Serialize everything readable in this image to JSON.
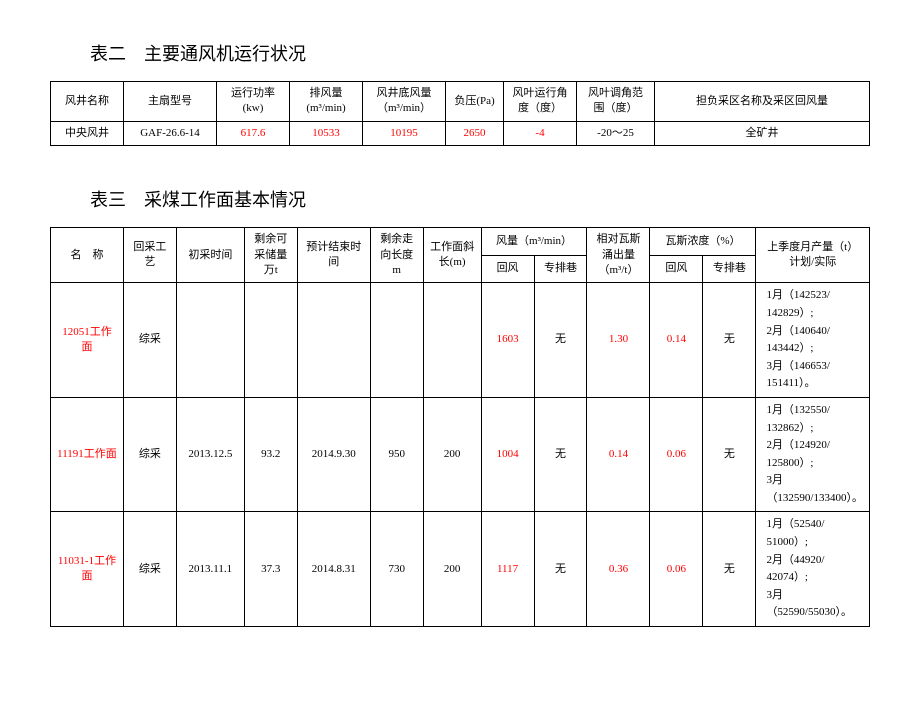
{
  "table2": {
    "title": "表二　主要通风机运行状况",
    "headers": {
      "c1": "风井名称",
      "c2": "主扇型号",
      "c3": "运行功率(kw)",
      "c4": "排风量(m³/min)",
      "c5": "风井底风量（m³/min）",
      "c6": "负压(Pa)",
      "c7": "风叶运行角度（度）",
      "c8": "风叶调角范围（度）",
      "c9": "担负采区名称及采区回风量"
    },
    "row": {
      "c1": "中央风井",
      "c2": "GAF-26.6-14",
      "c3": "617.6",
      "c4": "10533",
      "c5": "10195",
      "c6": "2650",
      "c7": "-4",
      "c8": "-20～25",
      "c9": "全矿井"
    }
  },
  "table3": {
    "title": "表三　采煤工作面基本情况",
    "headers": {
      "name": "名　称",
      "tech": "回采工艺",
      "start": "初采时间",
      "reserve": "剩余可采储量万t",
      "end": "预计结束时间",
      "length": "剩余走向长度m",
      "slope": "工作面斜长(m)",
      "airflow": "风量（m³/min）",
      "airflow_a": "回风",
      "airflow_b": "专排巷",
      "gas_rel": "相对瓦斯涌出量（m³/t）",
      "gas_conc": "瓦斯浓度（%）",
      "gas_a": "回风",
      "gas_b": "专排巷",
      "output": "上季度月产量（t）计划/实际"
    },
    "rows": [
      {
        "name": "12051工作面",
        "tech": "综采",
        "start": "",
        "reserve": "",
        "end": "",
        "length": "",
        "slope": "",
        "airflow_a": "1603",
        "airflow_b": "无",
        "gas_rel": "1.30",
        "gas_a": "0.14",
        "gas_b": "无",
        "output": "1月（142523/ 142829）;\n2月（140640/ 143442）;\n3月（146653/ 151411）。"
      },
      {
        "name": "11191工作面",
        "tech": "综采",
        "start": "2013.12.5",
        "reserve": "93.2",
        "end": "2014.9.30",
        "length": "950",
        "slope": "200",
        "airflow_a": "1004",
        "airflow_b": "无",
        "gas_rel": "0.14",
        "gas_a": "0.06",
        "gas_b": "无",
        "output": "1月（132550/ 132862）;\n2月（124920/ 125800）;\n3月（132590/133400）。"
      },
      {
        "name": "11031-1工作面",
        "tech": "综采",
        "start": "2013.11.1",
        "reserve": "37.3",
        "end": "2014.8.31",
        "length": "730",
        "slope": "200",
        "airflow_a": "1117",
        "airflow_b": "无",
        "gas_rel": "0.36",
        "gas_a": "0.06",
        "gas_b": "无",
        "output": "1月（52540/ 51000）;\n2月（44920/ 42074）;\n3月（52590/55030）。"
      }
    ]
  }
}
